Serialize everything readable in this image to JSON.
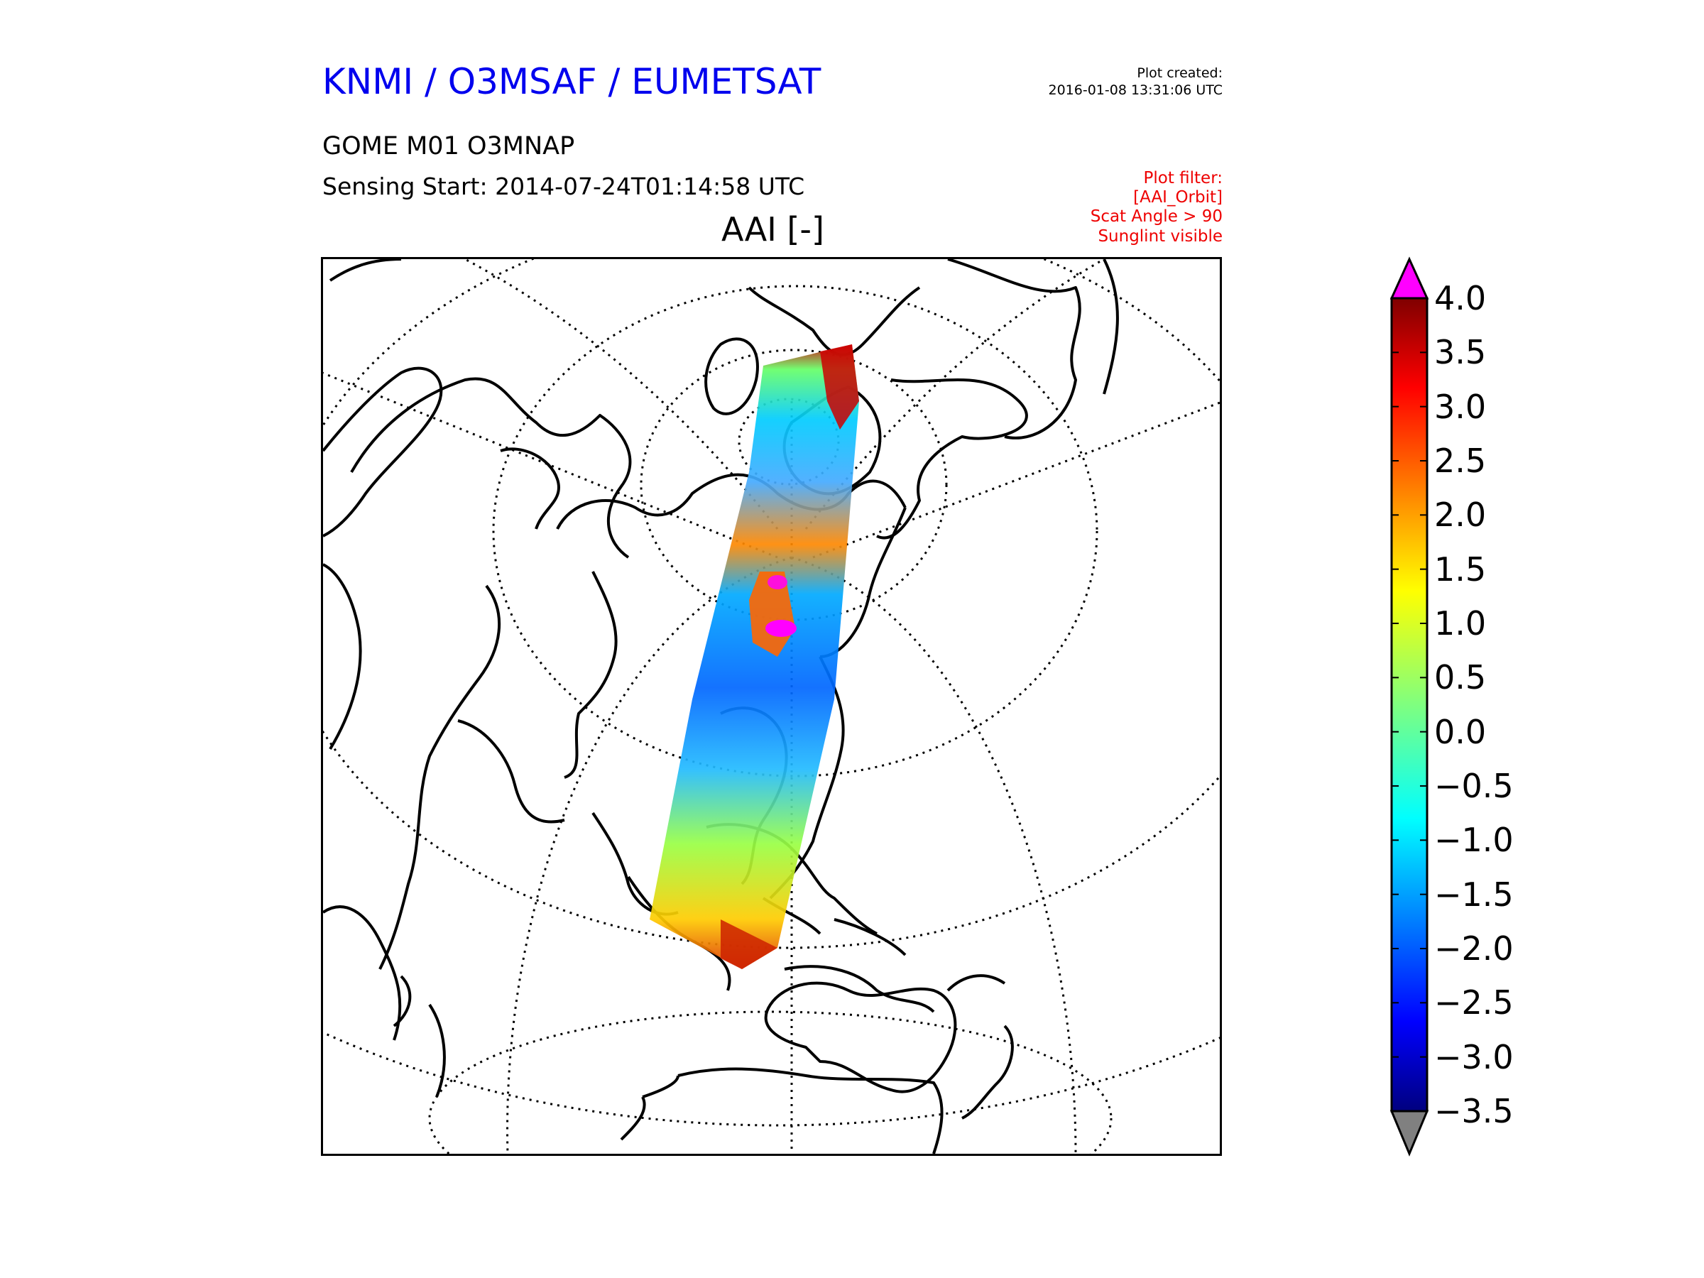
{
  "header": {
    "organisation": "KNMI / O3MSAF / EUMETSAT",
    "plot_created_label": "Plot created:",
    "plot_created_time": "2016-01-08 13:31:06 UTC",
    "product": "GOME M01 O3MNAP",
    "sensing_start": "Sensing Start: 2014-07-24T01:14:58 UTC",
    "variable": "AAI [-]",
    "filters": [
      "Plot filter:",
      "[AAI_Orbit]",
      "Scat Angle > 90",
      "Sunglint visible"
    ]
  },
  "colorbar": {
    "min": -3.5,
    "max": 4.0,
    "ticks": [
      "4.0",
      "3.5",
      "3.0",
      "2.5",
      "2.0",
      "1.5",
      "1.0",
      "0.5",
      "0.0",
      "−0.5",
      "−1.0",
      "−1.5",
      "−2.0",
      "−2.5",
      "−3.0",
      "−3.5"
    ],
    "tick_values": [
      4.0,
      3.5,
      3.0,
      2.5,
      2.0,
      1.5,
      1.0,
      0.5,
      0.0,
      -0.5,
      -1.0,
      -1.5,
      -2.0,
      -2.5,
      -3.0,
      -3.5
    ],
    "over_color": "#ff00ff",
    "under_color": "#808080",
    "colormap": "jet"
  },
  "map": {
    "projection": "polar-stereographic-oblique",
    "coastline_color": "#000000",
    "graticule_style": "dotted",
    "swath_colors": {
      "low": "#0000cc",
      "mid": "#00ccff",
      "neutral": "#66ff66",
      "high": "#ffcc00",
      "max": "#cc0000",
      "over": "#ff00ff"
    }
  }
}
